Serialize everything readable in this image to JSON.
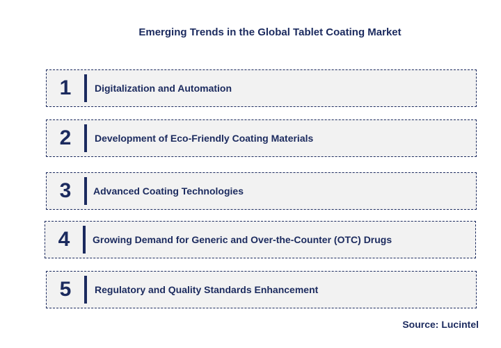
{
  "title": "Emerging Trends in the Global Tablet Coating Market",
  "trends": [
    {
      "number": "1",
      "label": "Digitalization and Automation"
    },
    {
      "number": "2",
      "label": "Development of Eco-Friendly Coating Materials"
    },
    {
      "number": "3",
      "label": "Advanced Coating Technologies"
    },
    {
      "number": "4",
      "label": "Growing Demand for Generic and Over-the-Counter (OTC) Drugs"
    },
    {
      "number": "5",
      "label": "Regulatory and Quality Standards Enhancement"
    }
  ],
  "source": "Source: Lucintel",
  "colors": {
    "primary": "#1b2a5e",
    "box_background": "#f2f2f2"
  }
}
